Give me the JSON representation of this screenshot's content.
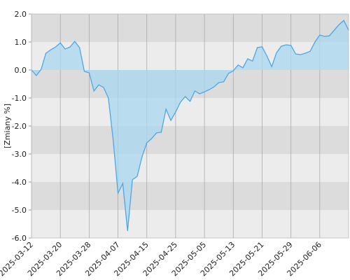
{
  "chart_data": {
    "type": "area",
    "y_label": "[Zmiany %]",
    "categories": [
      "2025-03-12",
      null,
      null,
      null,
      null,
      null,
      "2025-03-20",
      null,
      null,
      null,
      null,
      null,
      "2025-03-28",
      null,
      null,
      null,
      null,
      null,
      "2025-04-07",
      null,
      null,
      null,
      null,
      null,
      "2025-04-15",
      null,
      null,
      null,
      null,
      null,
      "2025-04-25",
      null,
      null,
      null,
      null,
      null,
      "2025-05-05",
      null,
      null,
      null,
      null,
      null,
      "2025-05-13",
      null,
      null,
      null,
      null,
      null,
      "2025-05-21",
      null,
      null,
      null,
      null,
      null,
      "2025-05-29",
      null,
      null,
      null,
      null,
      null,
      "2025-06-06",
      null,
      null,
      null,
      null,
      null,
      null
    ],
    "values": [
      0.0,
      -0.2,
      0.02,
      0.6,
      0.72,
      0.82,
      0.97,
      0.75,
      0.82,
      1.02,
      0.8,
      -0.05,
      -0.1,
      -0.75,
      -0.53,
      -0.62,
      -1.0,
      -2.5,
      -4.4,
      -4.05,
      -5.75,
      -3.92,
      -3.8,
      -3.1,
      -2.6,
      -2.45,
      -2.25,
      -2.22,
      -1.4,
      -1.8,
      -1.5,
      -1.15,
      -0.95,
      -1.12,
      -0.75,
      -0.85,
      -0.78,
      -0.7,
      -0.6,
      -0.45,
      -0.42,
      -0.12,
      -0.03,
      0.18,
      0.08,
      0.4,
      0.32,
      0.8,
      0.83,
      0.5,
      0.12,
      0.62,
      0.85,
      0.9,
      0.88,
      0.57,
      0.55,
      0.6,
      0.67,
      1.0,
      1.25,
      1.2,
      1.22,
      1.42,
      1.62,
      1.77,
      1.42
    ],
    "color": "#4da6e8",
    "fill": "#a8d8ef",
    "ylim": [
      -6,
      2
    ],
    "yticks": [
      {
        "value": -6,
        "label": "-6.0"
      },
      {
        "value": -5,
        "label": "-5.0"
      },
      {
        "value": -4,
        "label": "-4.0"
      },
      {
        "value": -3,
        "label": "-3.0"
      },
      {
        "value": -2,
        "label": "-2.0"
      },
      {
        "value": -1,
        "label": "-1.0"
      },
      {
        "value": 0,
        "label": "0.0"
      },
      {
        "value": 1,
        "label": "1.0"
      },
      {
        "value": 2,
        "label": "2.0"
      }
    ],
    "grid": true,
    "bands": [
      "#dcdcdc",
      "#ececec"
    ]
  }
}
